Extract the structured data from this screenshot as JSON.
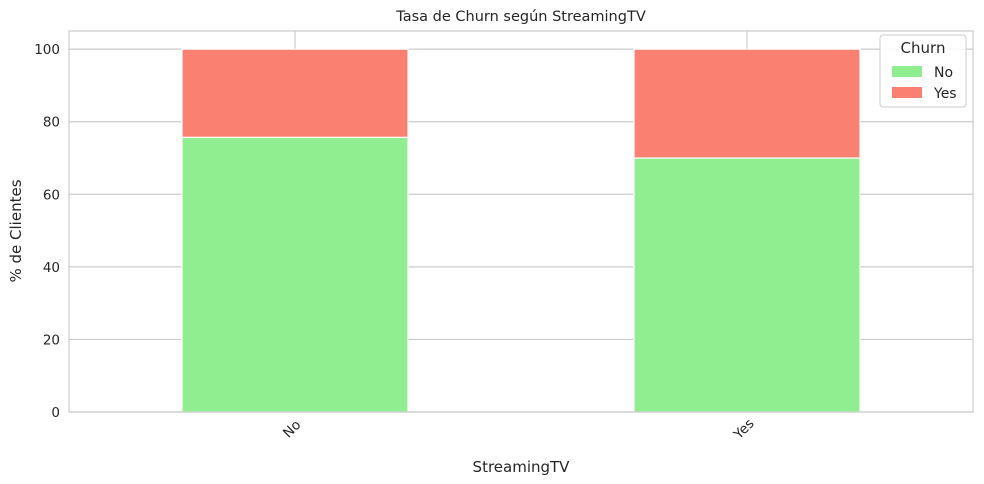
{
  "chart_data": {
    "type": "bar",
    "stacked": true,
    "title": "Tasa de Churn según StreamingTV",
    "xlabel": "StreamingTV",
    "ylabel": "% de Clientes",
    "categories": [
      "No",
      "Yes"
    ],
    "series": [
      {
        "name": "No",
        "values": [
          75.7,
          70.0
        ],
        "color": "#90ee90"
      },
      {
        "name": "Yes",
        "values": [
          24.3,
          30.0
        ],
        "color": "#fa8072"
      }
    ],
    "ylim": [
      0,
      105
    ],
    "yticks": [
      0,
      20,
      40,
      60,
      80,
      100
    ],
    "grid": true,
    "legend": {
      "title": "Churn",
      "position": "top-right"
    }
  }
}
